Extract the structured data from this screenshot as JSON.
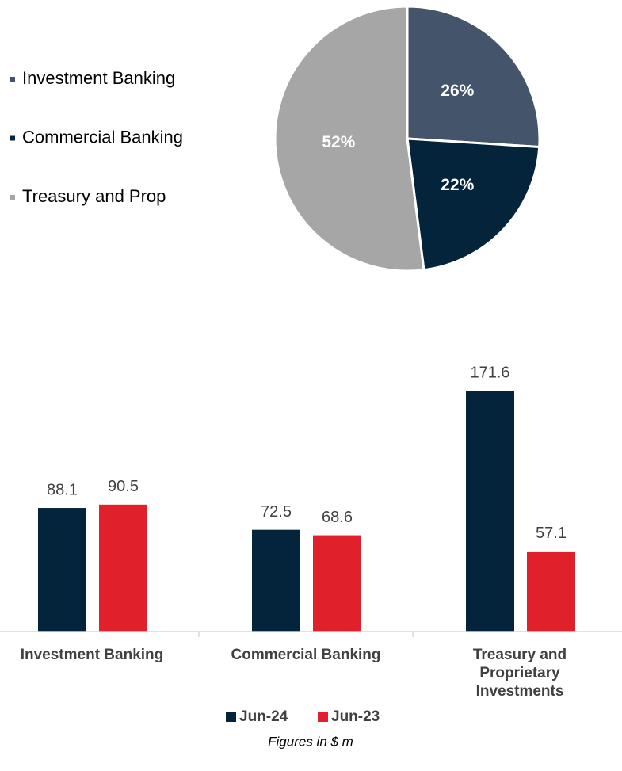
{
  "chart_data": [
    {
      "type": "pie",
      "categories": [
        "Investment Banking",
        "Commercial Banking",
        "Treasury and Prop"
      ],
      "values": [
        26,
        22,
        52
      ],
      "value_labels": [
        "26%",
        "22%",
        "52%"
      ],
      "colors": [
        "#44546a",
        "#03243a",
        "#a6a6a6"
      ],
      "legend": "left"
    },
    {
      "type": "bar",
      "categories": [
        "Investment Banking",
        "Commercial Banking",
        "Treasury and Proprietary Investments"
      ],
      "series": [
        {
          "name": "Jun-24",
          "color": "#03243a",
          "values": [
            88.1,
            72.5,
            171.6
          ]
        },
        {
          "name": "Jun-23",
          "color": "#e0202a",
          "values": [
            90.5,
            68.6,
            57.1
          ]
        }
      ],
      "ylim": [
        0,
        200
      ],
      "legend": "bottom",
      "note": "Figures in $ m"
    }
  ]
}
